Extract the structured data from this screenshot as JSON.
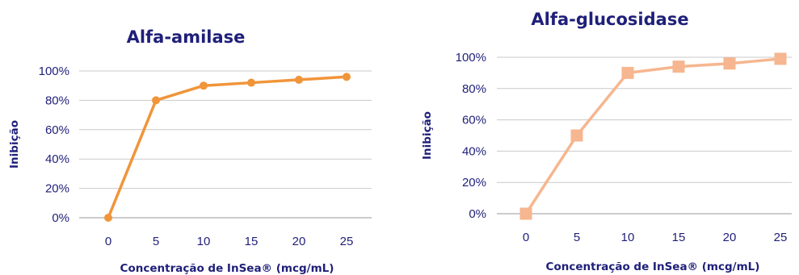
{
  "chart_data": [
    {
      "type": "line",
      "title": "Alfa-amilase",
      "xlabel": "Concentração de InSea® (mcg/mL)",
      "ylabel": "Inibição",
      "x": [
        "0",
        "5",
        "10",
        "15",
        "20",
        "25"
      ],
      "y_ticks": [
        "0%",
        "20%",
        "40%",
        "60%",
        "80%",
        "100%"
      ],
      "ylim": [
        0,
        100
      ],
      "grid": true,
      "marker": "circle",
      "color": "#f0953a",
      "series": [
        {
          "values": [
            0,
            80,
            90,
            92,
            94,
            96
          ]
        }
      ]
    },
    {
      "type": "line",
      "title": "Alfa-glucosidase",
      "xlabel": "Concentração de InSea® (mcg/mL)",
      "ylabel": "Inibição",
      "x": [
        "0",
        "5",
        "10",
        "15",
        "20",
        "25"
      ],
      "y_ticks": [
        "0%",
        "20%",
        "40%",
        "60%",
        "80%",
        "100%"
      ],
      "ylim": [
        0,
        100
      ],
      "grid": true,
      "marker": "square",
      "color": "#f6b68f",
      "series": [
        {
          "values": [
            0,
            50,
            90,
            94,
            96,
            99
          ]
        }
      ]
    }
  ]
}
